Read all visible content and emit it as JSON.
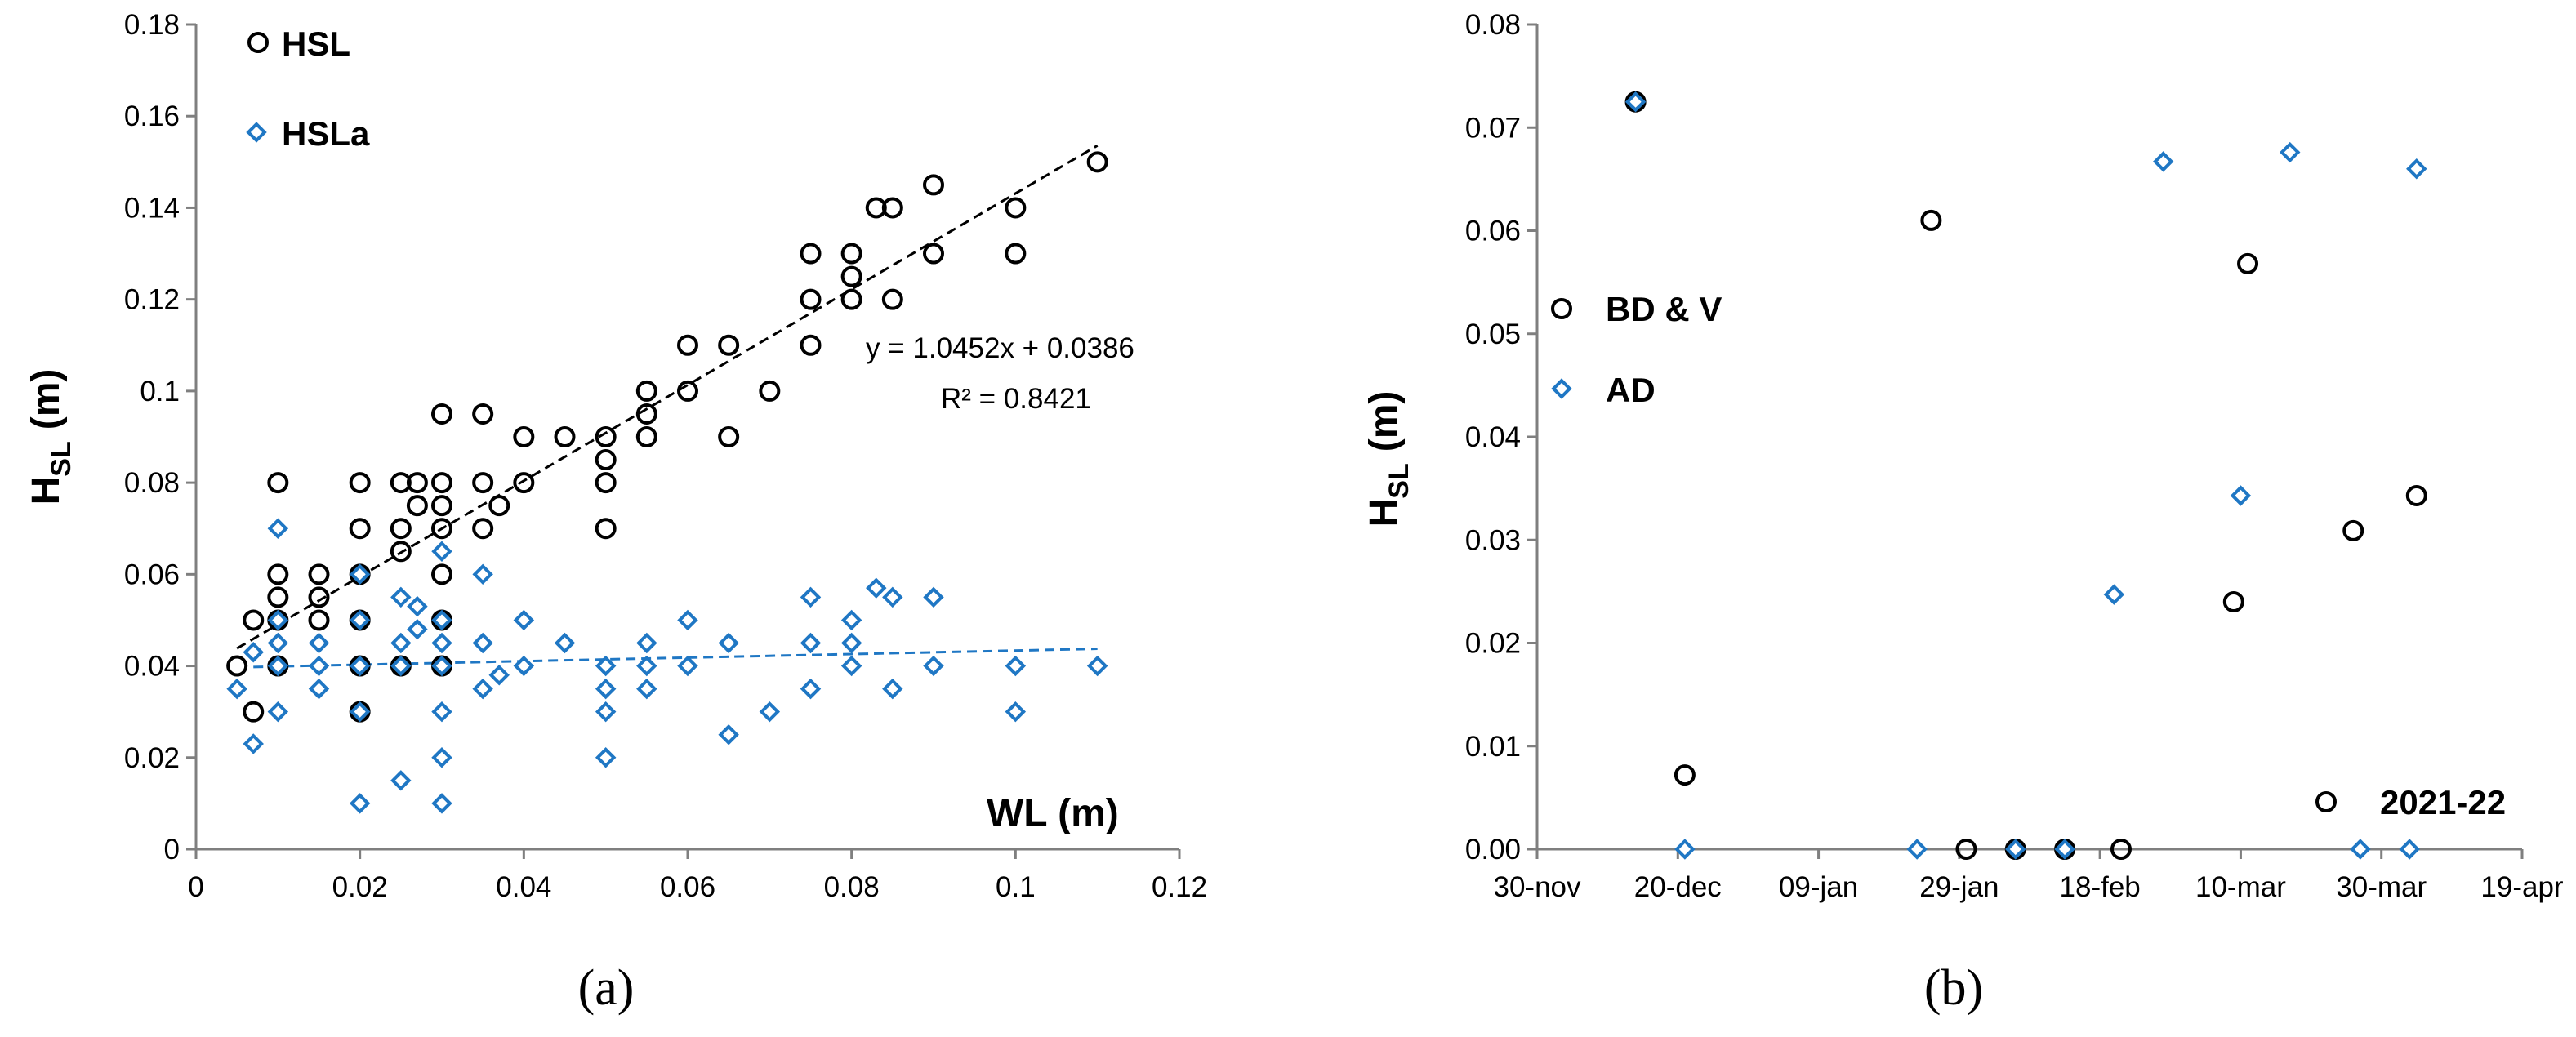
{
  "chart_data": [
    {
      "type": "scatter",
      "panel_label": "(a)",
      "xlabel": "WL (m)",
      "ylabel_main": "H",
      "ylabel_sub": "SL",
      "ylabel_unit": "(m)",
      "xlim": [
        0,
        0.12
      ],
      "ylim": [
        0,
        0.18
      ],
      "x_ticks": [
        "0",
        "0.02",
        "0.04",
        "0.06",
        "0.08",
        "0.1",
        "0.12"
      ],
      "y_ticks": [
        "0",
        "0.02",
        "0.04",
        "0.06",
        "0.08",
        "0.1",
        "0.12",
        "0.14",
        "0.16",
        "0.18"
      ],
      "grid": false,
      "legend_position": "top-left",
      "series": [
        {
          "name": "HSL",
          "marker": "circle",
          "color": "#000000",
          "points": [
            [
              0.005,
              0.04
            ],
            [
              0.007,
              0.05
            ],
            [
              0.007,
              0.03
            ],
            [
              0.01,
              0.08
            ],
            [
              0.01,
              0.06
            ],
            [
              0.01,
              0.055
            ],
            [
              0.01,
              0.05
            ],
            [
              0.01,
              0.04
            ],
            [
              0.015,
              0.06
            ],
            [
              0.015,
              0.055
            ],
            [
              0.015,
              0.05
            ],
            [
              0.02,
              0.08
            ],
            [
              0.02,
              0.07
            ],
            [
              0.02,
              0.06
            ],
            [
              0.02,
              0.05
            ],
            [
              0.02,
              0.04
            ],
            [
              0.02,
              0.03
            ],
            [
              0.025,
              0.08
            ],
            [
              0.025,
              0.07
            ],
            [
              0.025,
              0.065
            ],
            [
              0.025,
              0.04
            ],
            [
              0.027,
              0.08
            ],
            [
              0.027,
              0.075
            ],
            [
              0.03,
              0.095
            ],
            [
              0.03,
              0.08
            ],
            [
              0.03,
              0.075
            ],
            [
              0.03,
              0.07
            ],
            [
              0.03,
              0.06
            ],
            [
              0.03,
              0.05
            ],
            [
              0.03,
              0.04
            ],
            [
              0.035,
              0.095
            ],
            [
              0.035,
              0.08
            ],
            [
              0.035,
              0.07
            ],
            [
              0.037,
              0.075
            ],
            [
              0.04,
              0.09
            ],
            [
              0.04,
              0.08
            ],
            [
              0.045,
              0.09
            ],
            [
              0.05,
              0.09
            ],
            [
              0.05,
              0.085
            ],
            [
              0.05,
              0.08
            ],
            [
              0.05,
              0.07
            ],
            [
              0.055,
              0.1
            ],
            [
              0.055,
              0.095
            ],
            [
              0.055,
              0.09
            ],
            [
              0.06,
              0.11
            ],
            [
              0.06,
              0.1
            ],
            [
              0.065,
              0.11
            ],
            [
              0.065,
              0.09
            ],
            [
              0.07,
              0.1
            ],
            [
              0.075,
              0.13
            ],
            [
              0.075,
              0.12
            ],
            [
              0.075,
              0.11
            ],
            [
              0.08,
              0.13
            ],
            [
              0.08,
              0.125
            ],
            [
              0.08,
              0.12
            ],
            [
              0.083,
              0.14
            ],
            [
              0.085,
              0.14
            ],
            [
              0.085,
              0.12
            ],
            [
              0.09,
              0.145
            ],
            [
              0.09,
              0.13
            ],
            [
              0.1,
              0.14
            ],
            [
              0.1,
              0.13
            ],
            [
              0.11,
              0.15
            ]
          ],
          "trendline": {
            "slope": 1.0452,
            "intercept": 0.0386,
            "x_range": [
              0.005,
              0.11
            ],
            "style": "dashed",
            "color": "#000000"
          }
        },
        {
          "name": "HSLa",
          "marker": "diamond",
          "color": "#1f77c4",
          "points": [
            [
              0.005,
              0.035
            ],
            [
              0.007,
              0.043
            ],
            [
              0.007,
              0.023
            ],
            [
              0.01,
              0.07
            ],
            [
              0.01,
              0.05
            ],
            [
              0.01,
              0.045
            ],
            [
              0.01,
              0.04
            ],
            [
              0.01,
              0.03
            ],
            [
              0.015,
              0.045
            ],
            [
              0.015,
              0.04
            ],
            [
              0.015,
              0.035
            ],
            [
              0.02,
              0.06
            ],
            [
              0.02,
              0.05
            ],
            [
              0.02,
              0.04
            ],
            [
              0.02,
              0.03
            ],
            [
              0.02,
              0.01
            ],
            [
              0.025,
              0.055
            ],
            [
              0.025,
              0.045
            ],
            [
              0.025,
              0.04
            ],
            [
              0.025,
              0.015
            ],
            [
              0.027,
              0.053
            ],
            [
              0.027,
              0.048
            ],
            [
              0.03,
              0.065
            ],
            [
              0.03,
              0.05
            ],
            [
              0.03,
              0.045
            ],
            [
              0.03,
              0.04
            ],
            [
              0.03,
              0.03
            ],
            [
              0.03,
              0.02
            ],
            [
              0.03,
              0.01
            ],
            [
              0.035,
              0.06
            ],
            [
              0.035,
              0.045
            ],
            [
              0.035,
              0.035
            ],
            [
              0.037,
              0.038
            ],
            [
              0.04,
              0.05
            ],
            [
              0.04,
              0.04
            ],
            [
              0.045,
              0.045
            ],
            [
              0.05,
              0.04
            ],
            [
              0.05,
              0.035
            ],
            [
              0.05,
              0.03
            ],
            [
              0.05,
              0.02
            ],
            [
              0.055,
              0.045
            ],
            [
              0.055,
              0.04
            ],
            [
              0.055,
              0.035
            ],
            [
              0.06,
              0.05
            ],
            [
              0.06,
              0.04
            ],
            [
              0.065,
              0.045
            ],
            [
              0.065,
              0.025
            ],
            [
              0.07,
              0.03
            ],
            [
              0.075,
              0.055
            ],
            [
              0.075,
              0.045
            ],
            [
              0.075,
              0.035
            ],
            [
              0.08,
              0.05
            ],
            [
              0.08,
              0.045
            ],
            [
              0.08,
              0.04
            ],
            [
              0.083,
              0.057
            ],
            [
              0.085,
              0.055
            ],
            [
              0.085,
              0.035
            ],
            [
              0.09,
              0.055
            ],
            [
              0.09,
              0.04
            ],
            [
              0.1,
              0.04
            ],
            [
              0.1,
              0.03
            ],
            [
              0.11,
              0.04
            ]
          ],
          "trendline": {
            "slope": 0.0386,
            "intercept": 0.0395,
            "x_range": [
              0.007,
              0.11
            ],
            "style": "dashed",
            "color": "#1f77c4"
          }
        }
      ],
      "annotations": {
        "equation": "y = 1.0452x + 0.0386",
        "r_squared": "R² = 0.8421"
      }
    },
    {
      "type": "scatter",
      "panel_label": "(b)",
      "xlabel": "",
      "ylabel_main": "H",
      "ylabel_sub": "SL",
      "ylabel_unit": "(m)",
      "x_is_date": true,
      "x_origin": "30-nov",
      "xlim_days": [
        0,
        140
      ],
      "ylim": [
        0,
        0.08
      ],
      "x_ticks": [
        "30-nov",
        "20-dec",
        "09-jan",
        "29-jan",
        "18-feb",
        "10-mar",
        "30-mar",
        "19-apr"
      ],
      "y_ticks": [
        "0.00",
        "0.01",
        "0.02",
        "0.03",
        "0.04",
        "0.05",
        "0.06",
        "0.07",
        "0.08"
      ],
      "grid": false,
      "legend_position": "left",
      "season_label": "2021-22",
      "series": [
        {
          "name": "BD & V",
          "marker": "circle",
          "color": "#000000",
          "points_days": [
            [
              14,
              0.0725
            ],
            [
              21,
              0.0072
            ],
            [
              56,
              0.061
            ],
            [
              61,
              0.0
            ],
            [
              68,
              0.0
            ],
            [
              75,
              0.0
            ],
            [
              83,
              0.0
            ],
            [
              99,
              0.024
            ],
            [
              101,
              0.0568
            ],
            [
              116,
              0.0309
            ],
            [
              125,
              0.0343
            ]
          ]
        },
        {
          "name": "AD",
          "marker": "diamond",
          "color": "#1f77c4",
          "points_days": [
            [
              14,
              0.0725
            ],
            [
              21,
              0.0
            ],
            [
              54,
              0.0
            ],
            [
              68,
              0.0
            ],
            [
              75,
              0.0
            ],
            [
              82,
              0.0247
            ],
            [
              89,
              0.0667
            ],
            [
              100,
              0.0343
            ],
            [
              107,
              0.0676
            ],
            [
              117,
              0.0
            ],
            [
              124,
              0.0
            ],
            [
              125,
              0.066
            ]
          ]
        }
      ]
    }
  ]
}
